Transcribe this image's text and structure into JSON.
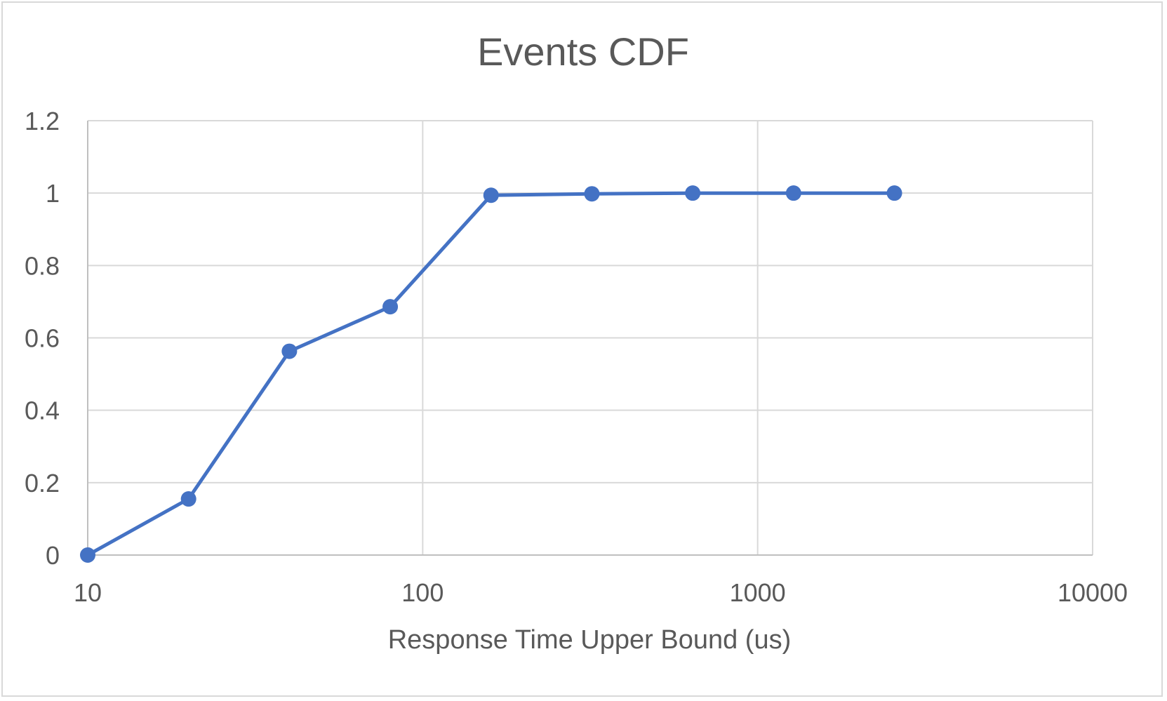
{
  "chart_data": {
    "type": "scatter",
    "title": "Events CDF",
    "xlabel": "Response Time Upper Bound (us)",
    "ylabel": "",
    "x_scale": "log",
    "xlim": [
      10,
      10000
    ],
    "ylim": [
      0,
      1.2
    ],
    "x_ticks": [
      10,
      100,
      1000,
      10000
    ],
    "x_tick_labels": [
      "10",
      "100",
      "1000",
      "10000"
    ],
    "y_ticks": [
      0,
      0.2,
      0.4,
      0.6,
      0.8,
      1,
      1.2
    ],
    "y_tick_labels": [
      "0",
      "0.2",
      "0.4",
      "0.6",
      "0.8",
      "1",
      "1.2"
    ],
    "grid": true,
    "legend": "none",
    "line_color": "#4472C4",
    "series": [
      {
        "x": [
          10,
          20,
          40,
          80,
          160,
          320,
          640,
          1280,
          2560
        ],
        "y": [
          0,
          0.155,
          0.563,
          0.686,
          0.994,
          0.998,
          1.0,
          1.0,
          1.0
        ]
      }
    ]
  }
}
